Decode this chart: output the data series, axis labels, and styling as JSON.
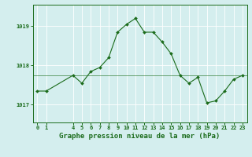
{
  "x": [
    0,
    1,
    4,
    5,
    6,
    7,
    8,
    9,
    10,
    11,
    12,
    13,
    14,
    15,
    16,
    17,
    18,
    19,
    20,
    21,
    22,
    23
  ],
  "y": [
    1017.35,
    1017.35,
    1017.75,
    1017.55,
    1017.85,
    1017.95,
    1018.2,
    1018.85,
    1019.05,
    1019.2,
    1018.85,
    1018.85,
    1018.6,
    1018.3,
    1017.75,
    1017.55,
    1017.7,
    1017.05,
    1017.1,
    1017.35,
    1017.65,
    1017.75
  ],
  "line_color": "#1a6b1a",
  "marker": "D",
  "marker_size": 2.0,
  "bg_color": "#d4eeee",
  "grid_color": "#ffffff",
  "ylabel_ticks": [
    1017,
    1018,
    1019
  ],
  "ylim": [
    1016.55,
    1019.55
  ],
  "xlim": [
    -0.5,
    23.5
  ],
  "xlabel": "Graphe pression niveau de la mer (hPa)",
  "xticks": [
    0,
    1,
    4,
    5,
    6,
    7,
    8,
    9,
    10,
    11,
    12,
    13,
    14,
    15,
    16,
    17,
    18,
    19,
    20,
    21,
    22,
    23
  ],
  "tick_fontsize": 5.0,
  "label_fontsize": 6.5,
  "spine_color": "#1a6b1a",
  "hline_y": 1017.75
}
